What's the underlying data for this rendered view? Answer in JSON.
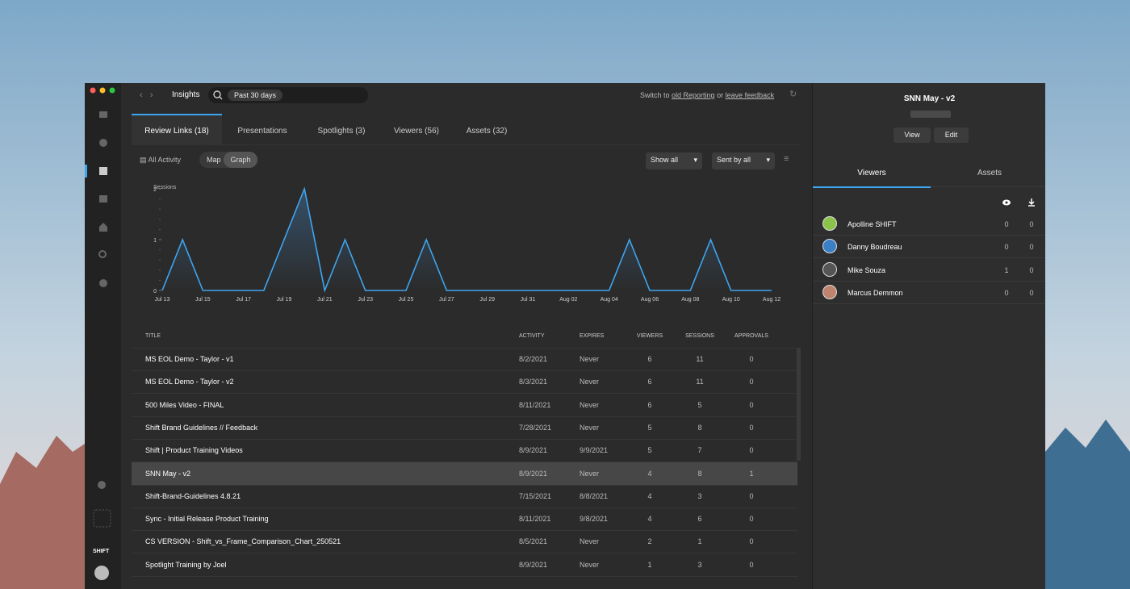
{
  "nav": {
    "title": "Insights",
    "date_filter": "Past 30 days",
    "switch_text": "Switch to",
    "old_reporting": "old Reporting",
    "or_text": "or",
    "feedback": "leave feedback"
  },
  "tabs": {
    "items": [
      "Review Links (18)",
      "Presentations",
      "Spotlights (3)",
      "Viewers (56)",
      "Assets (32)"
    ],
    "active": 0
  },
  "filters": {
    "all_activity": "All Activity",
    "map": "Map",
    "graph": "Graph",
    "show_all": "Show all",
    "sent_by": "Sent by all"
  },
  "chart_data": {
    "type": "line",
    "y_label": "Sessions",
    "color": "#3ea6f0",
    "categories": [
      "Jul 13",
      null,
      "Jul 15",
      null,
      "Jul 17",
      null,
      "Jul 19",
      null,
      "Jul 21",
      null,
      "Jul 23",
      null,
      "Jul 25",
      null,
      "Jul 27",
      null,
      "Jul 29",
      null,
      "Jul 31",
      null,
      "Aug 02",
      null,
      "Aug 04",
      null,
      "Aug 06",
      null,
      "Aug 08",
      null,
      "Aug 10",
      null,
      "Aug 12"
    ],
    "values": [
      0,
      1,
      0,
      0,
      0,
      0,
      1,
      2,
      0,
      1,
      0,
      0,
      0,
      1,
      0,
      0,
      0,
      0,
      0,
      0,
      0,
      0,
      0,
      1,
      0,
      0,
      0,
      1,
      0,
      0,
      0
    ],
    "ylim": [
      0,
      2
    ],
    "yticks": [
      0,
      1,
      2
    ]
  },
  "table": {
    "columns": [
      "TITLE",
      "ACTIVITY",
      "EXPIRES",
      "VIEWERS",
      "SESSIONS",
      "APPROVALS"
    ],
    "selected_row": 5,
    "rows": [
      [
        "MS EOL Demo - Taylor - v1",
        "8/2/2021",
        "Never",
        "6",
        "11",
        "0"
      ],
      [
        "MS EOL Demo - Taylor - v2",
        "8/3/2021",
        "Never",
        "6",
        "11",
        "0"
      ],
      [
        "500 Miles Video - FINAL",
        "8/11/2021",
        "Never",
        "6",
        "5",
        "0"
      ],
      [
        "Shift Brand Guidelines // Feedback",
        "7/28/2021",
        "Never",
        "5",
        "8",
        "0"
      ],
      [
        "Shift | Product Training Videos",
        "8/9/2021",
        "9/9/2021",
        "5",
        "7",
        "0"
      ],
      [
        "SNN May - v2",
        "8/9/2021",
        "Never",
        "4",
        "8",
        "1"
      ],
      [
        "Shift-Brand-Guidelines 4.8.21",
        "7/15/2021",
        "8/8/2021",
        "4",
        "3",
        "0"
      ],
      [
        "Sync - Initial Release Product Training",
        "8/11/2021",
        "9/8/2021",
        "4",
        "6",
        "0"
      ],
      [
        "CS VERSION - Shift_vs_Frame_Comparison_Chart_250521",
        "8/5/2021",
        "Never",
        "2",
        "1",
        "0"
      ],
      [
        "Spotlight Training by Joel",
        "8/9/2021",
        "Never",
        "1",
        "3",
        "0"
      ]
    ]
  },
  "panel": {
    "title": "SNN May - v2",
    "view": "View",
    "edit": "Edit",
    "tabs": [
      "Viewers",
      "Assets"
    ],
    "viewers": [
      {
        "name": "Apolline SHIFT",
        "views": "0",
        "downloads": "0"
      },
      {
        "name": "Danny Boudreau",
        "views": "0",
        "downloads": "0"
      },
      {
        "name": "Mike Souza",
        "views": "1",
        "downloads": "0"
      },
      {
        "name": "Marcus Demmon",
        "views": "0",
        "downloads": "0"
      }
    ]
  },
  "brand": "SHIFT"
}
